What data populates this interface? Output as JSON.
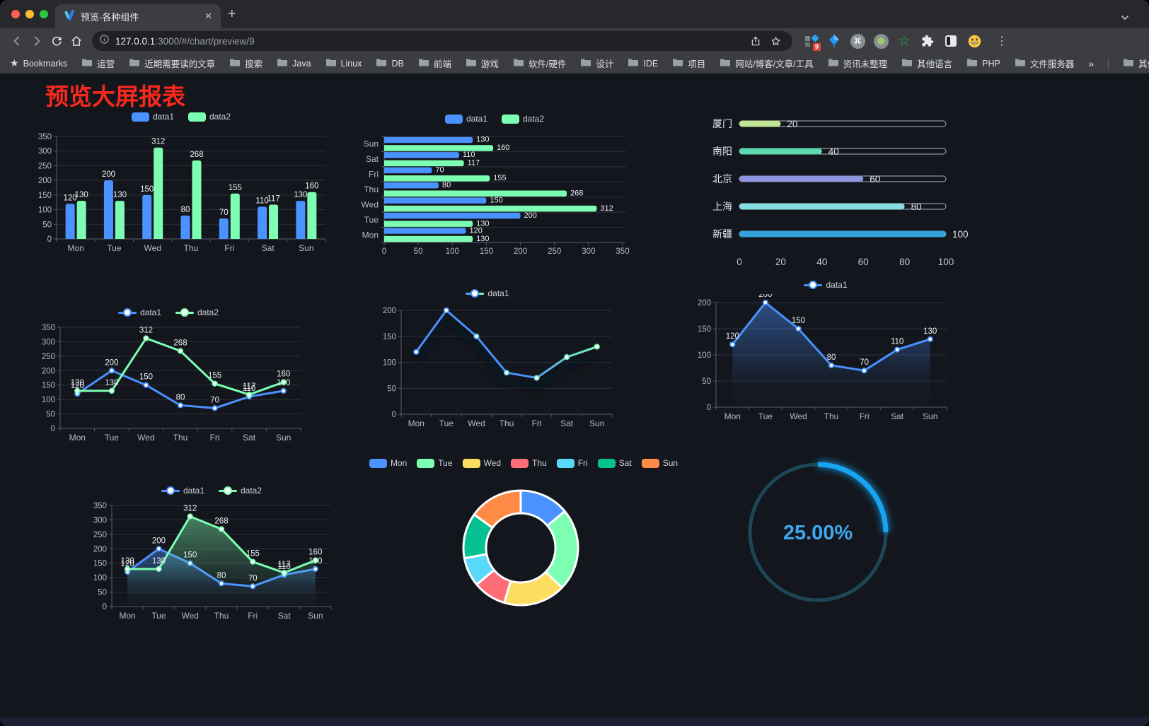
{
  "browser": {
    "tab_title": "预览-各种组件",
    "close_glyph": "✕",
    "new_tab_glyph": "+",
    "url_host": "127.0.0.1",
    "url_rest": ":3000/#/chart/preview/9",
    "extension_badge": "9",
    "command_glyph": "⌘",
    "menu_glyph": "⋮",
    "bookmarks_label": "Bookmarks",
    "bookmark_folders": [
      "运营",
      "近期需要读的文章",
      "搜索",
      "Java",
      "Linux",
      "DB",
      "前端",
      "游戏",
      "软件/硬件",
      "设计",
      "IDE",
      "项目",
      "网站/博客/文章/工具",
      "资讯未整理",
      "其他语言",
      "PHP",
      "文件服务器"
    ],
    "overflow_label": "»",
    "other_bookmarks_label": "其他书签"
  },
  "page": {
    "title": "预览大屏报表",
    "title_color": "#fa291c"
  },
  "chart_data": [
    {
      "id": "c1",
      "type": "bar",
      "categories": [
        "Mon",
        "Tue",
        "Wed",
        "Thu",
        "Fri",
        "Sat",
        "Sun"
      ],
      "series": [
        {
          "name": "data1",
          "color": "#4992ff",
          "values": [
            120,
            200,
            150,
            80,
            70,
            110,
            130
          ]
        },
        {
          "name": "data2",
          "color": "#7cffb2",
          "values": [
            130,
            130,
            312,
            268,
            155,
            117,
            160
          ]
        }
      ],
      "ylim": [
        0,
        350
      ],
      "ytick": 50,
      "grid": true,
      "legend_position": "top",
      "labels": true
    },
    {
      "id": "c2",
      "type": "hbar",
      "categories": [
        "Mon",
        "Tue",
        "Wed",
        "Thu",
        "Fri",
        "Sat",
        "Sun"
      ],
      "series": [
        {
          "name": "data1",
          "color": "#4992ff",
          "values": [
            120,
            200,
            150,
            80,
            70,
            110,
            130
          ]
        },
        {
          "name": "data2",
          "color": "#7cffb2",
          "values": [
            130,
            130,
            312,
            268,
            155,
            117,
            160
          ]
        }
      ],
      "xlim": [
        0,
        350
      ],
      "xtick": 50,
      "grid": true,
      "legend_position": "top",
      "labels": true
    },
    {
      "id": "c3",
      "type": "progress-bars",
      "max": 100,
      "items": [
        {
          "label": "厦门",
          "value": 20,
          "color": "#c1e593"
        },
        {
          "label": "南阳",
          "value": 40,
          "color": "#5ed8ae"
        },
        {
          "label": "北京",
          "value": 60,
          "color": "#8d95dc"
        },
        {
          "label": "上海",
          "value": 80,
          "color": "#87dee2"
        },
        {
          "label": "新疆",
          "value": 100,
          "color": "#34a3dc"
        }
      ],
      "xticks": [
        0,
        20,
        40,
        60,
        80,
        100
      ]
    },
    {
      "id": "c4",
      "type": "line",
      "categories": [
        "Mon",
        "Tue",
        "Wed",
        "Thu",
        "Fri",
        "Sat",
        "Sun"
      ],
      "series": [
        {
          "name": "data1",
          "color": "#4992ff",
          "values": [
            120,
            200,
            150,
            80,
            70,
            110,
            130
          ]
        },
        {
          "name": "data2",
          "color": "#7cffb2",
          "values": [
            130,
            130,
            312,
            268,
            155,
            117,
            160
          ]
        }
      ],
      "ylim": [
        0,
        350
      ],
      "ytick": 50,
      "labels": true,
      "markers": true,
      "legend_position": "top"
    },
    {
      "id": "c5",
      "type": "line",
      "categories": [
        "Mon",
        "Tue",
        "Wed",
        "Thu",
        "Fri",
        "Sat",
        "Sun"
      ],
      "series": [
        {
          "name": "data1",
          "gradient": [
            "#4992ff",
            "#7cffb2"
          ],
          "values": [
            120,
            200,
            150,
            80,
            70,
            110,
            130
          ],
          "shadow": true
        }
      ],
      "ylim": [
        0,
        200
      ],
      "ytick": 50,
      "labels": false,
      "markers": true,
      "legend_position": "top"
    },
    {
      "id": "c6",
      "type": "line",
      "categories": [
        "Mon",
        "Tue",
        "Wed",
        "Thu",
        "Fri",
        "Sat",
        "Sun"
      ],
      "series": [
        {
          "name": "data1",
          "color": "#4992ff",
          "values": [
            120,
            200,
            150,
            80,
            70,
            110,
            130
          ],
          "area": true
        }
      ],
      "ylim": [
        0,
        200
      ],
      "ytick": 50,
      "labels": true,
      "markers": true,
      "legend_position": "top"
    },
    {
      "id": "c7",
      "type": "line",
      "categories": [
        "Mon",
        "Tue",
        "Wed",
        "Thu",
        "Fri",
        "Sat",
        "Sun"
      ],
      "series": [
        {
          "name": "data1",
          "color": "#4992ff",
          "values": [
            120,
            200,
            150,
            80,
            70,
            110,
            130
          ],
          "area": true
        },
        {
          "name": "data2",
          "color": "#7cffb2",
          "values": [
            130,
            130,
            312,
            268,
            155,
            117,
            160
          ],
          "area": true
        }
      ],
      "ylim": [
        0,
        350
      ],
      "ytick": 50,
      "labels": true,
      "markers": true,
      "legend_position": "top"
    },
    {
      "id": "c8",
      "type": "pie",
      "donut": true,
      "categories": [
        "Mon",
        "Tue",
        "Wed",
        "Thu",
        "Fri",
        "Sat",
        "Sun"
      ],
      "values": [
        120,
        200,
        150,
        80,
        70,
        110,
        130
      ],
      "colors": [
        "#4992ff",
        "#7cffb2",
        "#fddd60",
        "#ff6e76",
        "#58d9f9",
        "#05c091",
        "#ff8a45"
      ],
      "legend_position": "top"
    },
    {
      "id": "c9",
      "type": "gauge",
      "value": 25,
      "label": "25.00%",
      "arc_color": "#17a4f3",
      "track_color": "#1d4656",
      "text_color": "#3fa7ee"
    }
  ]
}
